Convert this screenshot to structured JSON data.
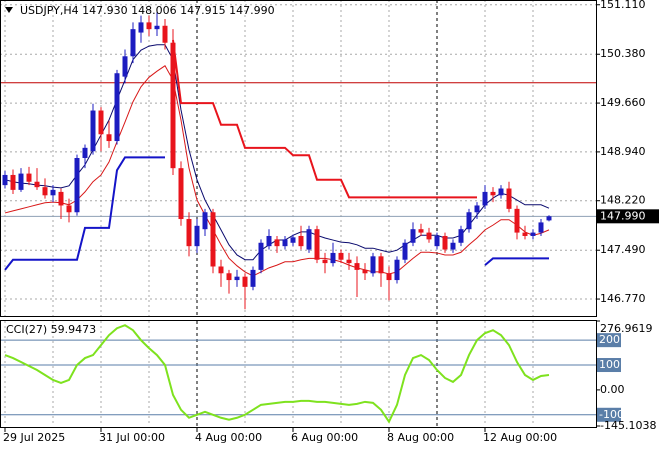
{
  "chart_data": [
    {
      "type": "candlestick",
      "title": "USDJPY,H4 147.930 148.006 147.915 147.990",
      "categories": [
        "29 Jul 2025",
        null,
        null,
        null,
        null,
        null,
        null,
        null,
        null,
        null,
        null,
        null,
        "31 Jul 00:00",
        null,
        null,
        null,
        null,
        null,
        null,
        null,
        null,
        null,
        null,
        null,
        "4 Aug 00:00",
        null,
        null,
        null,
        null,
        null,
        null,
        null,
        null,
        null,
        null,
        null,
        "6 Aug 00:00",
        null,
        null,
        null,
        null,
        null,
        null,
        null,
        null,
        null,
        null,
        null,
        "8 Aug 00:00",
        null,
        null,
        null,
        null,
        null,
        null,
        null,
        null,
        null,
        null,
        null,
        "12 Aug 00:00",
        null,
        null,
        null,
        null,
        null,
        null,
        null,
        null
      ],
      "open": [
        148.45,
        148.6,
        148.38,
        148.62,
        148.5,
        148.42,
        148.3,
        148.35,
        148.15,
        148.05,
        148.85,
        148.95,
        149.55,
        149.2,
        149.1,
        150.05,
        150.35,
        150.7,
        150.85,
        150.75,
        150.8,
        150.55,
        148.7,
        147.95,
        147.55,
        147.8,
        148.05,
        147.25,
        147.15,
        147.05,
        147.1,
        146.95,
        147.2,
        147.55,
        147.65,
        147.55,
        147.6,
        147.7,
        147.5,
        147.8,
        147.35,
        147.3,
        147.45,
        147.35,
        147.3,
        147.2,
        147.15,
        147.4,
        147.15,
        147.05,
        147.35,
        147.6,
        147.8,
        147.75,
        147.55,
        147.7,
        147.5,
        147.6,
        147.8,
        148.05,
        148.15,
        148.35,
        148.3,
        148.4,
        148.1,
        147.75,
        147.7,
        147.75,
        147.93
      ],
      "high": [
        148.66,
        148.68,
        148.7,
        148.72,
        148.7,
        148.55,
        148.45,
        148.4,
        148.25,
        148.9,
        149.05,
        149.65,
        149.6,
        149.4,
        150.15,
        150.45,
        150.85,
        150.95,
        150.95,
        151.0,
        150.9,
        150.75,
        148.8,
        148.05,
        147.95,
        148.1,
        148.1,
        147.35,
        147.2,
        147.2,
        147.15,
        147.25,
        147.65,
        147.8,
        147.7,
        147.7,
        147.72,
        147.85,
        147.85,
        147.85,
        147.45,
        147.6,
        147.5,
        147.45,
        147.4,
        147.3,
        147.45,
        147.45,
        147.25,
        147.4,
        147.65,
        147.9,
        147.88,
        147.82,
        147.75,
        147.75,
        147.65,
        147.85,
        148.1,
        148.2,
        148.45,
        148.42,
        148.45,
        148.5,
        148.15,
        147.85,
        147.8,
        147.95,
        148.006
      ],
      "low": [
        148.4,
        148.32,
        148.35,
        148.45,
        148.38,
        148.25,
        148.2,
        147.95,
        147.9,
        148.0,
        148.7,
        148.9,
        148.95,
        149.0,
        149.05,
        149.95,
        150.25,
        150.55,
        150.65,
        150.65,
        150.45,
        148.6,
        147.85,
        147.4,
        147.45,
        147.7,
        147.15,
        146.95,
        146.85,
        146.95,
        146.62,
        146.9,
        147.15,
        147.5,
        147.45,
        147.5,
        147.55,
        147.5,
        147.45,
        147.3,
        147.15,
        147.25,
        147.3,
        147.2,
        146.8,
        147.05,
        147.1,
        146.95,
        146.75,
        147.0,
        147.3,
        147.55,
        147.7,
        147.6,
        147.5,
        147.45,
        147.45,
        147.55,
        147.75,
        147.95,
        148.1,
        148.2,
        148.25,
        148.05,
        147.65,
        147.65,
        147.65,
        147.7,
        147.915
      ],
      "close": [
        148.6,
        148.38,
        148.62,
        148.5,
        148.42,
        148.3,
        148.38,
        148.15,
        148.05,
        148.85,
        149.0,
        149.55,
        149.2,
        149.1,
        150.1,
        150.35,
        150.75,
        150.85,
        150.75,
        150.8,
        150.55,
        148.7,
        147.95,
        147.55,
        147.85,
        148.05,
        147.25,
        147.15,
        147.05,
        147.1,
        146.95,
        147.2,
        147.6,
        147.7,
        147.55,
        147.65,
        147.68,
        147.55,
        147.8,
        147.35,
        147.3,
        147.45,
        147.35,
        147.3,
        147.2,
        147.15,
        147.4,
        147.15,
        147.05,
        147.35,
        147.6,
        147.8,
        147.75,
        147.65,
        147.7,
        147.5,
        147.6,
        147.8,
        148.05,
        148.15,
        148.35,
        148.3,
        148.4,
        148.1,
        147.75,
        147.7,
        147.75,
        147.9,
        147.99
      ],
      "up_color": "#1c1cc0",
      "down_color": "#e8141c",
      "series": [
        {
          "color": "#0a0a6e",
          "width": 1,
          "values": [
            148.53,
            148.5,
            148.48,
            148.47,
            148.45,
            148.44,
            148.42,
            148.41,
            148.44,
            148.6,
            148.75,
            148.97,
            149.19,
            149.41,
            149.71,
            150.0,
            150.3,
            150.44,
            150.5,
            150.52,
            150.52,
            150.3,
            149.56,
            148.97,
            148.53,
            148.23,
            148.01,
            147.79,
            147.57,
            147.42,
            147.35,
            147.35,
            147.49,
            147.57,
            147.64,
            147.64,
            147.71,
            147.76,
            147.76,
            147.71,
            147.67,
            147.64,
            147.61,
            147.6,
            147.57,
            147.52,
            147.52,
            147.49,
            147.46,
            147.49,
            147.57,
            147.64,
            147.71,
            147.71,
            147.71,
            147.67,
            147.67,
            147.71,
            147.86,
            148.01,
            148.16,
            148.26,
            148.33,
            148.3,
            148.23,
            148.16,
            148.16,
            148.16,
            148.11
          ]
        },
        {
          "color": "#d81818",
          "width": 1,
          "values": [
            148.04,
            148.07,
            148.1,
            148.13,
            148.16,
            148.19,
            148.2,
            148.19,
            148.16,
            148.23,
            148.35,
            148.5,
            148.6,
            148.79,
            149.09,
            149.38,
            149.68,
            149.9,
            150.04,
            150.13,
            150.21,
            150.0,
            149.41,
            148.7,
            148.23,
            148.01,
            147.79,
            147.57,
            147.37,
            147.26,
            147.17,
            147.11,
            147.17,
            147.23,
            147.27,
            147.32,
            147.32,
            147.35,
            147.37,
            147.37,
            147.37,
            147.35,
            147.32,
            147.27,
            147.23,
            147.2,
            147.17,
            147.17,
            147.14,
            147.17,
            147.27,
            147.37,
            147.46,
            147.46,
            147.45,
            147.42,
            147.42,
            147.46,
            147.57,
            147.67,
            147.79,
            147.86,
            147.94,
            147.94,
            147.86,
            147.76,
            147.71,
            147.74,
            147.79
          ]
        },
        {
          "color": "#e8141c",
          "width": 2,
          "values": [
            null,
            null,
            null,
            null,
            null,
            null,
            null,
            null,
            null,
            null,
            null,
            null,
            null,
            null,
            null,
            null,
            null,
            null,
            null,
            null,
            null,
            150.59,
            149.66,
            149.66,
            149.66,
            149.66,
            149.66,
            149.34,
            149.34,
            149.34,
            149.0,
            149.0,
            149.0,
            149.0,
            149.0,
            149.0,
            148.89,
            148.89,
            148.89,
            148.53,
            148.53,
            148.53,
            148.53,
            148.27,
            148.27,
            148.27,
            148.27,
            148.27,
            148.27,
            148.27,
            148.27,
            148.27,
            148.27,
            148.27,
            148.27,
            148.27,
            148.27,
            148.27,
            148.27,
            148.27,
            null,
            null,
            null,
            null,
            null,
            null,
            null,
            null,
            null
          ]
        },
        {
          "color": "#1414c8",
          "width": 2,
          "values": [
            147.2,
            147.35,
            147.35,
            147.35,
            147.35,
            147.35,
            147.35,
            147.35,
            147.35,
            147.35,
            147.82,
            147.82,
            147.82,
            147.82,
            148.67,
            148.86,
            148.86,
            148.86,
            148.86,
            148.86,
            148.86,
            null,
            null,
            null,
            null,
            null,
            null,
            null,
            null,
            null,
            null,
            null,
            null,
            null,
            null,
            null,
            null,
            null,
            null,
            null,
            null,
            null,
            null,
            null,
            null,
            null,
            null,
            null,
            null,
            null,
            null,
            null,
            null,
            null,
            null,
            null,
            null,
            null,
            null,
            null,
            147.27,
            147.37,
            147.37,
            147.37,
            147.37,
            147.37,
            147.37,
            147.37,
            147.37
          ]
        }
      ],
      "level_line": {
        "value": 149.96,
        "color": "#c00000"
      },
      "price_line": {
        "value": 147.99,
        "label": "147.990"
      },
      "separators": [
        24,
        54
      ],
      "ylim": [
        146.52,
        151.18
      ],
      "yticks": [
        {
          "value": 151.11,
          "label": "151.110"
        },
        {
          "value": 150.38,
          "label": "150.380"
        },
        {
          "value": 149.66,
          "label": "149.660"
        },
        {
          "value": 148.94,
          "label": "148.940"
        },
        {
          "value": 148.22,
          "label": "148.220"
        },
        {
          "value": 147.49,
          "label": "147.490"
        },
        {
          "value": 146.77,
          "label": "146.770"
        }
      ],
      "grid": true
    },
    {
      "type": "line",
      "title": "CCI(27) 59.9473",
      "color": "#7ee21e",
      "values": [
        140,
        128,
        112,
        96,
        80,
        60,
        40,
        28,
        40,
        100,
        128,
        140,
        180,
        220,
        248,
        260,
        240,
        200,
        168,
        140,
        100,
        -20,
        -80,
        -112,
        -100,
        -88,
        -100,
        -112,
        -120,
        -112,
        -100,
        -80,
        -60,
        -56,
        -52,
        -48,
        -48,
        -44,
        -44,
        -48,
        -48,
        -52,
        -56,
        -60,
        -56,
        -48,
        -52,
        -80,
        -128,
        -60,
        60,
        128,
        140,
        120,
        80,
        48,
        32,
        60,
        140,
        200,
        228,
        240,
        220,
        180,
        112,
        60,
        40,
        56,
        59.9473
      ],
      "levels": [
        200,
        100,
        -100
      ],
      "ylim": [
        -145.1038,
        276.9619
      ],
      "yticks": [
        276.9619,
        {
          "value": 0,
          "label": "0.00"
        },
        -145.1038
      ]
    }
  ]
}
